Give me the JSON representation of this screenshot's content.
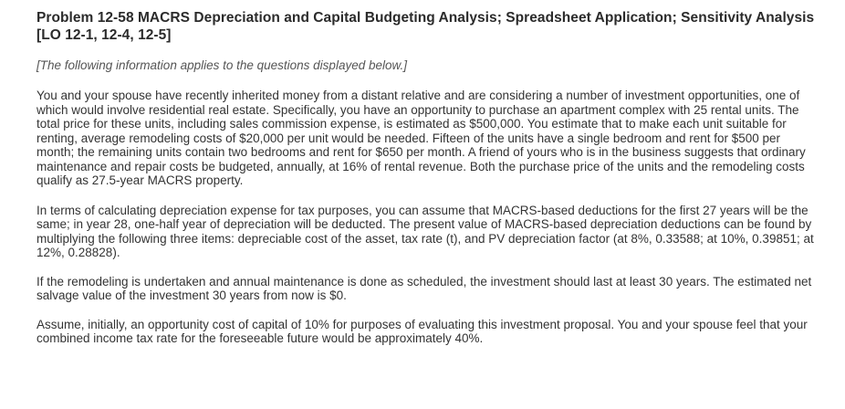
{
  "problem": {
    "title": "Problem 12-58 MACRS Depreciation and Capital Budgeting Analysis; Spreadsheet Application; Sensitivity Analysis [LO 12-1, 12-4, 12-5]",
    "note": "[The following information applies to the questions displayed below.]"
  },
  "paragraphs": [
    "You and your spouse have recently inherited money from a distant relative and are considering a number of investment opportunities, one of which would involve residential real estate. Specifically, you have an opportunity to purchase an apartment complex with 25 rental units. The total price for these units, including sales commission expense, is estimated as $500,000. You estimate that to make each unit suitable for renting, average remodeling costs of $20,000 per unit would be needed. Fifteen of the units have a single bedroom and rent for $500 per month; the remaining units contain two bedrooms and rent for $650 per month. A friend of yours who is in the business suggests that ordinary maintenance and repair costs be budgeted, annually, at 16% of rental revenue. Both the purchase price of the units and the remodeling costs qualify as 27.5-year MACRS property.",
    "In terms of calculating depreciation expense for tax purposes, you can assume that MACRS-based deductions for the first 27 years will be the same; in year 28, one-half year of depreciation will be deducted. The present value of MACRS-based depreciation deductions can be found by multiplying the following three items: depreciable cost of the asset, tax rate (t), and PV depreciation factor (at 8%, 0.33588; at 10%, 0.39851; at 12%, 0.28828).",
    "If the remodeling is undertaken and annual maintenance is done as scheduled, the investment should last at least 30 years. The estimated net salvage value of the investment 30 years from now is $0.",
    "Assume, initially, an opportunity cost of capital of 10% for purposes of evaluating this investment proposal. You and your spouse feel that your combined income tax rate for the foreseeable future would be approximately 40%."
  ]
}
